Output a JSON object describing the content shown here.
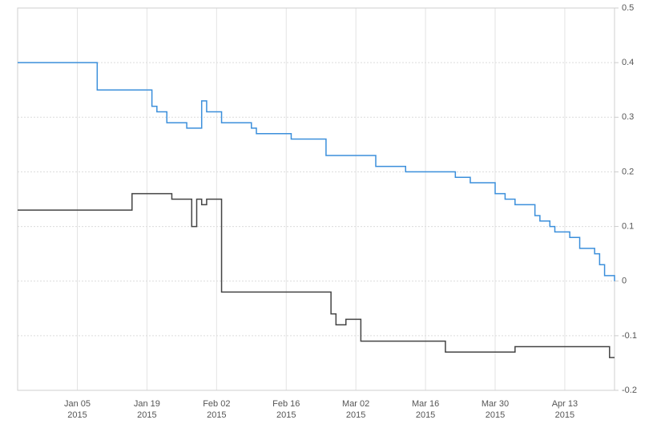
{
  "chart_data": {
    "type": "step-line",
    "xlim": [
      "2014-12-24",
      "2015-04-23"
    ],
    "xticks": [
      {
        "value": "2015-01-05",
        "label": "Jan 05",
        "year": "2015"
      },
      {
        "value": "2015-01-19",
        "label": "Jan 19",
        "year": "2015"
      },
      {
        "value": "2015-02-02",
        "label": "Feb 02",
        "year": "2015"
      },
      {
        "value": "2015-02-16",
        "label": "Feb 16",
        "year": "2015"
      },
      {
        "value": "2015-03-02",
        "label": "Mar 02",
        "year": "2015"
      },
      {
        "value": "2015-03-16",
        "label": "Mar 16",
        "year": "2015"
      },
      {
        "value": "2015-03-30",
        "label": "Mar 30",
        "year": "2015"
      },
      {
        "value": "2015-04-13",
        "label": "Apr 13",
        "year": "2015"
      }
    ],
    "ylim": [
      -0.2,
      0.5
    ],
    "yticks": [
      0.5,
      0.4,
      0.3,
      0.2,
      0.1,
      0,
      -0.1,
      -0.2
    ],
    "grid": true,
    "series": [
      {
        "color": "#3b8fdb",
        "x": [
          "2014-12-24",
          "2015-01-09",
          "2015-01-20",
          "2015-01-21",
          "2015-01-23",
          "2015-01-27",
          "2015-01-30",
          "2015-01-31",
          "2015-02-03",
          "2015-02-09",
          "2015-02-10",
          "2015-02-17",
          "2015-02-24",
          "2015-03-06",
          "2015-03-12",
          "2015-03-22",
          "2015-03-25",
          "2015-03-30",
          "2015-04-01",
          "2015-04-03",
          "2015-04-07",
          "2015-04-08",
          "2015-04-10",
          "2015-04-11",
          "2015-04-14",
          "2015-04-16",
          "2015-04-19",
          "2015-04-20",
          "2015-04-21",
          "2015-04-23"
        ],
        "values": [
          0.4,
          0.35,
          0.32,
          0.31,
          0.29,
          0.28,
          0.33,
          0.31,
          0.29,
          0.28,
          0.27,
          0.26,
          0.23,
          0.21,
          0.2,
          0.19,
          0.18,
          0.16,
          0.15,
          0.14,
          0.12,
          0.11,
          0.1,
          0.09,
          0.08,
          0.06,
          0.05,
          0.03,
          0.01,
          0.0
        ]
      },
      {
        "color": "#444444",
        "x": [
          "2014-12-24",
          "2015-01-16",
          "2015-01-24",
          "2015-01-28",
          "2015-01-29",
          "2015-01-30",
          "2015-01-31",
          "2015-02-03",
          "2015-02-25",
          "2015-02-26",
          "2015-02-28",
          "2015-03-03",
          "2015-03-20",
          "2015-04-03",
          "2015-04-22"
        ],
        "values": [
          0.13,
          0.16,
          0.15,
          0.1,
          0.15,
          0.14,
          0.15,
          -0.02,
          -0.06,
          -0.08,
          -0.07,
          -0.11,
          -0.13,
          -0.12,
          -0.14
        ]
      }
    ]
  }
}
